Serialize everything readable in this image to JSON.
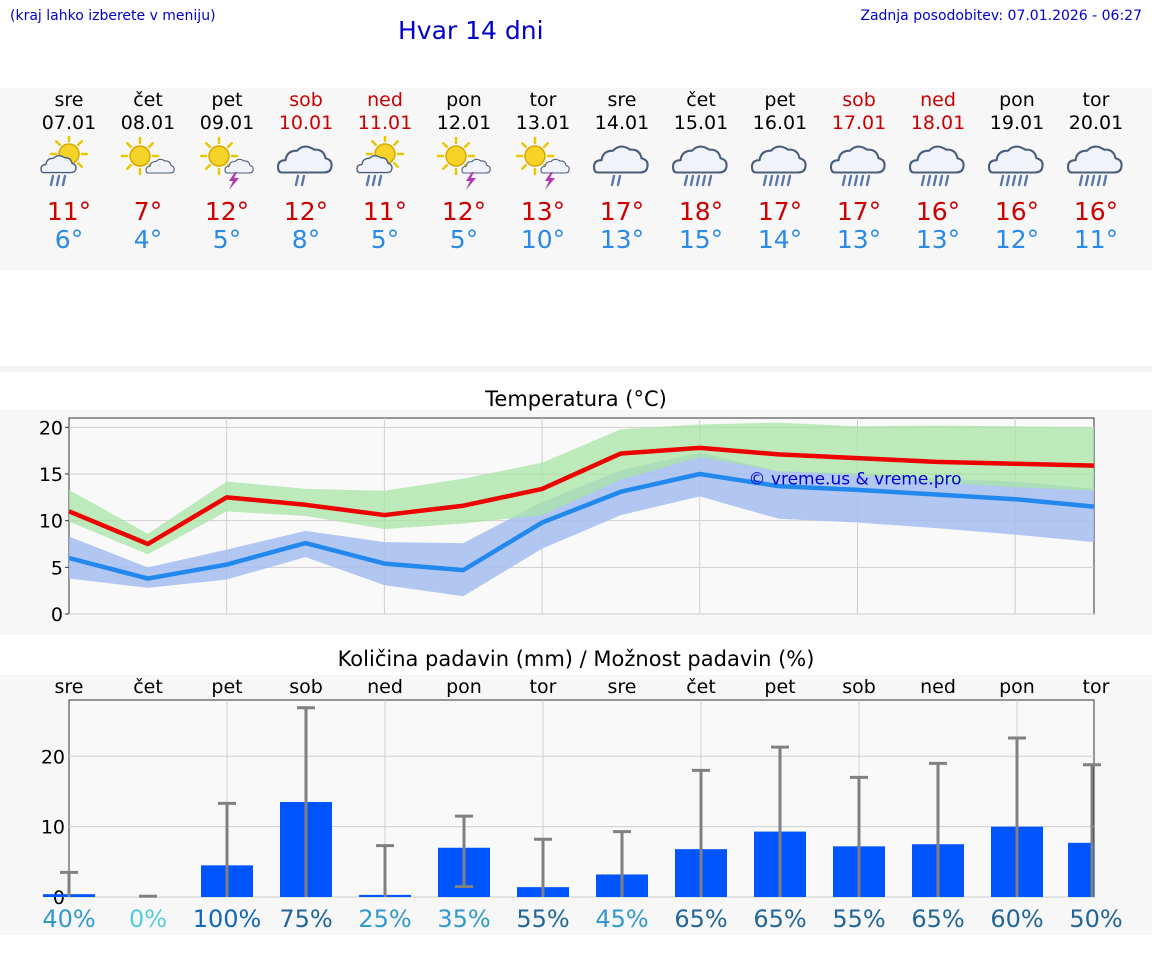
{
  "header": {
    "hint": "(kraj lahko izberete v meniju)",
    "title": "Hvar 14 dni",
    "updated": "Zadnja posodobitev: 07.01.2026 - 06:27"
  },
  "colors": {
    "max_temp": "#cc0000",
    "min_temp": "#2a8ae8",
    "weekend": "#cc0000",
    "link": "#0000cc",
    "precip_bar": "#0055ff"
  },
  "forecast": {
    "days": [
      {
        "name": "sre",
        "date": "07.01",
        "weekend": false,
        "icon": "sun-cloud-rain-icon",
        "max": "11°",
        "min": "6°"
      },
      {
        "name": "čet",
        "date": "08.01",
        "weekend": false,
        "icon": "sun-cloud-icon",
        "max": "7°",
        "min": "4°"
      },
      {
        "name": "pet",
        "date": "09.01",
        "weekend": false,
        "icon": "sun-storm-icon",
        "max": "12°",
        "min": "5°"
      },
      {
        "name": "sob",
        "date": "10.01",
        "weekend": true,
        "icon": "cloud-rain-icon",
        "max": "12°",
        "min": "8°"
      },
      {
        "name": "ned",
        "date": "11.01",
        "weekend": true,
        "icon": "sun-cloud-rain-icon",
        "max": "11°",
        "min": "5°"
      },
      {
        "name": "pon",
        "date": "12.01",
        "weekend": false,
        "icon": "sun-storm-icon",
        "max": "12°",
        "min": "5°"
      },
      {
        "name": "tor",
        "date": "13.01",
        "weekend": false,
        "icon": "sun-storm-icon",
        "max": "13°",
        "min": "10°"
      },
      {
        "name": "sre",
        "date": "14.01",
        "weekend": false,
        "icon": "cloud-rain-icon",
        "max": "17°",
        "min": "13°"
      },
      {
        "name": "čet",
        "date": "15.01",
        "weekend": false,
        "icon": "cloud-heavy-rain-icon",
        "max": "18°",
        "min": "15°"
      },
      {
        "name": "pet",
        "date": "16.01",
        "weekend": false,
        "icon": "cloud-heavy-rain-icon",
        "max": "17°",
        "min": "14°"
      },
      {
        "name": "sob",
        "date": "17.01",
        "weekend": true,
        "icon": "cloud-heavy-rain-icon",
        "max": "17°",
        "min": "13°"
      },
      {
        "name": "ned",
        "date": "18.01",
        "weekend": true,
        "icon": "cloud-heavy-rain-icon",
        "max": "16°",
        "min": "13°"
      },
      {
        "name": "pon",
        "date": "19.01",
        "weekend": false,
        "icon": "cloud-heavy-rain-icon",
        "max": "16°",
        "min": "12°"
      },
      {
        "name": "tor",
        "date": "20.01",
        "weekend": false,
        "icon": "cloud-heavy-rain-icon",
        "max": "16°",
        "min": "11°"
      }
    ]
  },
  "chart_data": [
    {
      "type": "line",
      "title": "Temperatura (°C)",
      "watermark": "© vreme.us & vreme.pro",
      "ylim": [
        0,
        21
      ],
      "yticks": [
        0,
        5,
        10,
        15,
        20
      ],
      "x": [
        0,
        1,
        2,
        3,
        4,
        5,
        6,
        7,
        8,
        9,
        10,
        11,
        12,
        13
      ],
      "series": [
        {
          "name": "max",
          "color": "#ee0000",
          "values": [
            11,
            7.5,
            12.5,
            11.7,
            10.6,
            11.6,
            13.4,
            17.2,
            17.8,
            17.1,
            16.7,
            16.3,
            16.1,
            15.9
          ]
        },
        {
          "name": "min",
          "color": "#2288ee",
          "values": [
            6,
            3.8,
            5.3,
            7.6,
            5.4,
            4.7,
            9.8,
            13.1,
            15,
            13.7,
            13.3,
            12.8,
            12.3,
            11.5
          ]
        },
        {
          "name": "max_range",
          "color": "#a8e4a4",
          "low": [
            9.9,
            6.4,
            11,
            10.5,
            9.1,
            9.7,
            10.6,
            14.4,
            16.8,
            15.3,
            14.9,
            14.1,
            13.6,
            13.2
          ],
          "high": [
            13.3,
            8.6,
            14.2,
            13.4,
            13.2,
            14.5,
            16.2,
            19.8,
            20.3,
            20.5,
            20.1,
            20.2,
            20.1,
            20
          ]
        },
        {
          "name": "min_range",
          "color": "#a4bef0",
          "low": [
            3.8,
            2.8,
            3.7,
            6.1,
            3.1,
            1.9,
            7,
            10.6,
            12.6,
            10.2,
            9.8,
            9.2,
            8.5,
            7.7
          ],
          "high": [
            8.3,
            5,
            6.9,
            8.9,
            7.7,
            7.6,
            12,
            15.4,
            17.3,
            15.3,
            15.1,
            14.5,
            14.2,
            13.4
          ]
        }
      ]
    },
    {
      "type": "bar",
      "title": "Količina padavin (mm) / Možnost padavin (%)",
      "ylim": [
        0,
        28
      ],
      "yticks": [
        0,
        10,
        20
      ],
      "categories": [
        "sre",
        "čet",
        "pet",
        "sob",
        "ned",
        "pon",
        "tor",
        "sre",
        "čet",
        "pet",
        "sob",
        "ned",
        "pon",
        "tor"
      ],
      "values": [
        0.4,
        0,
        4.5,
        13.5,
        0.3,
        7,
        1.4,
        3.2,
        6.8,
        9.3,
        7.2,
        7.5,
        10,
        7.7
      ],
      "error_high": [
        3.5,
        0.1,
        13.3,
        26.9,
        7.3,
        11.5,
        8.2,
        9.3,
        18,
        21.3,
        17,
        19,
        22.6,
        18.8
      ],
      "error_low": [
        0,
        0,
        0,
        0,
        0,
        1.5,
        0,
        0,
        0,
        0,
        0,
        0,
        0,
        0
      ],
      "probabilities": [
        "40%",
        "0%",
        "100%",
        "75%",
        "25%",
        "35%",
        "55%",
        "45%",
        "65%",
        "65%",
        "55%",
        "65%",
        "60%",
        "50%"
      ],
      "probability_colors": [
        "#3399cc",
        "#55ccdd",
        "#1166bb",
        "#226699",
        "#3399cc",
        "#3399cc",
        "#226699",
        "#3399cc",
        "#226699",
        "#226699",
        "#226699",
        "#226699",
        "#226699",
        "#226699"
      ]
    }
  ]
}
